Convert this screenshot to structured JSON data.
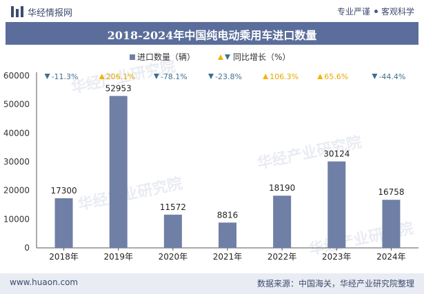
{
  "header": {
    "brand": "华经情报网",
    "tagline_left": "专业严谨",
    "tagline_right": "客观科学"
  },
  "chart_data": {
    "type": "bar",
    "title": "2018-2024年中国纯电动乘用车进口数量",
    "categories": [
      "2018年",
      "2019年",
      "2020年",
      "2021年",
      "2022年",
      "2023年",
      "2024年"
    ],
    "series": [
      {
        "name": "进口数量（辆）",
        "values": [
          17300,
          52953,
          11572,
          8816,
          18190,
          30124,
          16758
        ]
      }
    ],
    "growth": {
      "name": "同比增长（%）",
      "labels": [
        "-11.3%",
        "206.1%",
        "-78.1%",
        "-23.8%",
        "106.3%",
        "65.6%",
        "-44.4%"
      ],
      "directions": [
        "down",
        "up",
        "down",
        "down",
        "up",
        "up",
        "down"
      ]
    },
    "ylim": [
      0,
      60000
    ],
    "yticks": [
      0,
      10000,
      20000,
      30000,
      40000,
      50000,
      60000
    ],
    "xlabel": "",
    "ylabel": "",
    "legend": "top-center",
    "grid": false,
    "colors": {
      "bar": "#6f7fa6",
      "up": "#f2b300",
      "down": "#3f6f8f",
      "up_text": "#e6a800",
      "down_text": "#3f6f8f"
    }
  },
  "watermark": "华经产业研究院",
  "footer": {
    "url": "www.huaon.com",
    "source": "数据来源：中国海关，华经产业研究院整理"
  }
}
